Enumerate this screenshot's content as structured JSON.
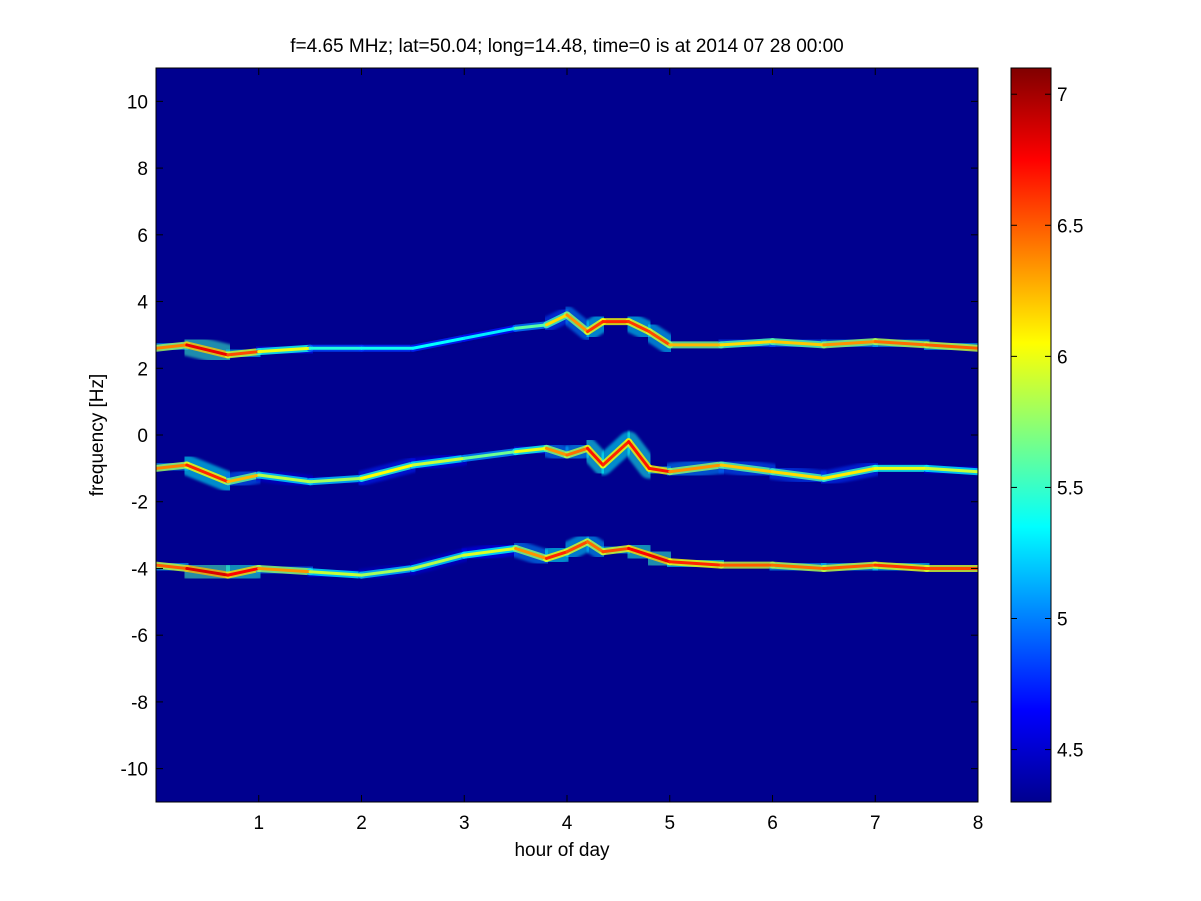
{
  "figure": {
    "title": "f=4.65 MHz;  lat=50.04; long=14.48, time=0 is at 2014 07 28 00:00"
  },
  "chart_data": {
    "type": "heatmap",
    "title": "f=4.65 MHz;  lat=50.04; long=14.48, time=0 is at 2014 07 28 00:00",
    "xlabel": "hour of day",
    "ylabel": "frequency [Hz]",
    "xlim": [
      0,
      8
    ],
    "ylim": [
      -11,
      11
    ],
    "xticks": [
      1,
      2,
      3,
      4,
      5,
      6,
      7,
      8
    ],
    "yticks": [
      10,
      8,
      6,
      4,
      2,
      0,
      -2,
      -4,
      -6,
      -8,
      -10
    ],
    "colorbar": {
      "colormap": "jet",
      "clim": [
        4.3,
        7.1
      ],
      "ticks": [
        7,
        6.5,
        6,
        5.5,
        5,
        4.5
      ]
    },
    "background_color": "#00008f",
    "traces": [
      {
        "x": [
          0,
          0.3,
          0.7,
          1.0,
          1.5,
          2.0,
          2.5,
          3.0,
          3.5,
          3.8,
          4.0,
          4.2,
          4.35,
          4.6,
          4.8,
          5.0,
          5.5,
          6.0,
          6.5,
          7.0,
          7.5,
          8.0
        ],
        "y": [
          2.6,
          2.7,
          2.4,
          2.5,
          2.6,
          2.6,
          2.6,
          2.9,
          3.2,
          3.3,
          3.6,
          3.1,
          3.4,
          3.4,
          3.1,
          2.7,
          2.7,
          2.8,
          2.7,
          2.8,
          2.7,
          2.6
        ],
        "level": [
          5.9,
          6.9,
          6.7,
          6.4,
          5.6,
          5.3,
          5.5,
          5.2,
          5.4,
          5.8,
          6.5,
          6.2,
          7.0,
          6.3,
          6.9,
          6.2,
          6.3,
          6.0,
          6.4,
          6.3,
          6.6,
          6.4
        ]
      },
      {
        "x": [
          0,
          0.3,
          0.7,
          1.0,
          1.5,
          2.0,
          2.5,
          3.0,
          3.5,
          3.8,
          4.0,
          4.2,
          4.35,
          4.6,
          4.8,
          5.0,
          5.5,
          6.0,
          6.5,
          7.0,
          7.5,
          8.0
        ],
        "y": [
          -1.0,
          -0.9,
          -1.4,
          -1.2,
          -1.4,
          -1.3,
          -0.9,
          -0.7,
          -0.5,
          -0.4,
          -0.6,
          -0.4,
          -0.9,
          -0.2,
          -1.0,
          -1.1,
          -0.9,
          -1.1,
          -1.3,
          -1.0,
          -1.0,
          -1.1
        ],
        "level": [
          6.0,
          6.8,
          6.5,
          6.0,
          5.7,
          5.9,
          6.2,
          5.6,
          5.7,
          6.3,
          6.4,
          6.5,
          6.9,
          6.4,
          7.0,
          6.4,
          6.3,
          6.1,
          6.2,
          6.0,
          6.0,
          5.8
        ]
      },
      {
        "x": [
          0,
          0.3,
          0.7,
          1.0,
          1.5,
          2.0,
          2.5,
          3.0,
          3.5,
          3.8,
          4.0,
          4.2,
          4.35,
          4.6,
          4.8,
          5.0,
          5.5,
          6.0,
          6.5,
          7.0,
          7.5,
          8.0
        ],
        "y": [
          -3.9,
          -4.0,
          -4.2,
          -4.0,
          -4.1,
          -4.2,
          -4.0,
          -3.6,
          -3.4,
          -3.7,
          -3.5,
          -3.2,
          -3.5,
          -3.4,
          -3.6,
          -3.8,
          -3.9,
          -3.9,
          -4.0,
          -3.9,
          -4.0,
          -4.0
        ],
        "level": [
          6.2,
          6.8,
          6.9,
          6.6,
          6.1,
          5.7,
          5.9,
          5.8,
          6.1,
          6.6,
          6.7,
          6.4,
          6.5,
          6.6,
          6.9,
          6.7,
          6.6,
          6.4,
          6.5,
          6.5,
          6.7,
          6.4
        ]
      }
    ]
  }
}
